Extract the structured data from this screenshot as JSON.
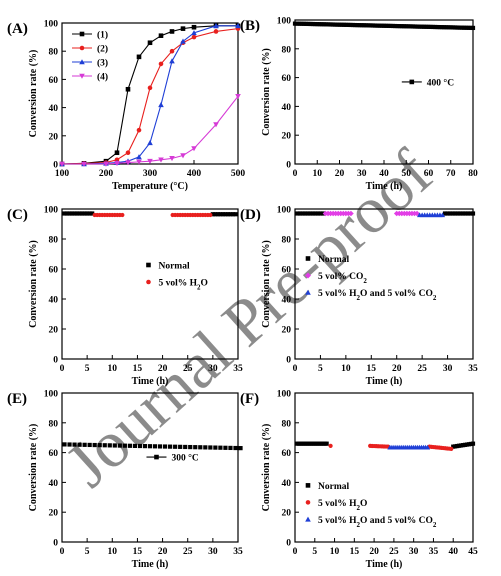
{
  "watermark": "Journal Pre-proof",
  "chart_data": [
    {
      "id": "A",
      "panel_label": "(A)",
      "type": "line",
      "xlabel": "Temperature (°C)",
      "ylabel": "Conversion rate (%)",
      "xlim": [
        100,
        500
      ],
      "ylim": [
        0,
        100
      ],
      "xticks": [
        100,
        200,
        300,
        400,
        500
      ],
      "yticks": [
        0,
        20,
        40,
        60,
        80,
        100
      ],
      "legend_position": "top-left",
      "series": [
        {
          "name": "(1)",
          "color": "#000000",
          "marker": "square",
          "x": [
            100,
            150,
            200,
            225,
            250,
            275,
            300,
            325,
            350,
            375,
            400,
            450,
            500
          ],
          "y": [
            0,
            0.5,
            2,
            8,
            53,
            76,
            86,
            91,
            94,
            96,
            97,
            98,
            98
          ]
        },
        {
          "name": "(2)",
          "color": "#e8201e",
          "marker": "circle",
          "x": [
            100,
            150,
            200,
            225,
            250,
            275,
            300,
            325,
            350,
            375,
            400,
            450,
            500
          ],
          "y": [
            0,
            0.3,
            1,
            3,
            8,
            24,
            54,
            71,
            80,
            86,
            90,
            94,
            96
          ]
        },
        {
          "name": "(3)",
          "color": "#1f3fd6",
          "marker": "triangle",
          "x": [
            100,
            150,
            200,
            225,
            250,
            275,
            300,
            325,
            350,
            375,
            400,
            450,
            500
          ],
          "y": [
            0,
            0,
            0.5,
            1,
            2,
            5,
            15,
            42,
            73,
            87,
            93,
            98,
            98
          ]
        },
        {
          "name": "(4)",
          "color": "#d63ad6",
          "marker": "triangle-down",
          "x": [
            100,
            150,
            200,
            225,
            250,
            275,
            300,
            325,
            350,
            375,
            400,
            450,
            500
          ],
          "y": [
            0,
            0,
            0,
            0.5,
            1,
            1.5,
            2,
            3,
            4,
            6,
            11,
            28,
            48
          ]
        }
      ]
    },
    {
      "id": "B",
      "panel_label": "(B)",
      "type": "scatter",
      "xlabel": "Time (h)",
      "ylabel": "Conversion rate (%)",
      "xlim": [
        0,
        80
      ],
      "ylim": [
        0,
        100
      ],
      "xticks": [
        0,
        10,
        20,
        30,
        40,
        50,
        60,
        70,
        80
      ],
      "yticks": [
        0,
        20,
        40,
        60,
        80,
        100
      ],
      "legend_position": "right-middle",
      "series": [
        {
          "name": "400 °C",
          "color": "#000000",
          "marker": "square",
          "legend_line": true,
          "segments": [
            {
              "from": 0,
              "to": 80,
              "step": 1,
              "y_start": 97.5,
              "y_end": 94.5
            }
          ]
        }
      ]
    },
    {
      "id": "C",
      "panel_label": "(C)",
      "type": "scatter",
      "xlabel": "Time (h)",
      "ylabel": "Conversion rate (%)",
      "xlim": [
        0,
        35
      ],
      "ylim": [
        0,
        100
      ],
      "xticks": [
        0,
        5,
        10,
        15,
        20,
        25,
        30,
        35
      ],
      "yticks": [
        0,
        20,
        40,
        60,
        80,
        100
      ],
      "legend_position": "center-right",
      "series": [
        {
          "name": "Normal",
          "color": "#000000",
          "marker": "square",
          "segments": [
            {
              "from": 0.5,
              "to": 6,
              "step": 0.5,
              "y_start": 97,
              "y_end": 97
            },
            {
              "from": 30,
              "to": 34.5,
              "step": 0.5,
              "y_start": 96.5,
              "y_end": 96.5
            }
          ]
        },
        {
          "name": "5 vol% H₂O",
          "color": "#e8201e",
          "marker": "circle",
          "segments": [
            {
              "from": 6.5,
              "to": 12,
              "step": 0.5,
              "y_start": 96,
              "y_end": 96
            },
            {
              "from": 22,
              "to": 29.5,
              "step": 0.5,
              "y_start": 96,
              "y_end": 96
            }
          ]
        }
      ]
    },
    {
      "id": "D",
      "panel_label": "(D)",
      "type": "scatter",
      "xlabel": "Time (h)",
      "ylabel": "Conversion rate (%)",
      "xlim": [
        0,
        35
      ],
      "ylim": [
        0,
        100
      ],
      "xticks": [
        0,
        5,
        10,
        15,
        20,
        25,
        30,
        35
      ],
      "yticks": [
        0,
        20,
        40,
        60,
        80,
        100
      ],
      "legend_position": "center-left",
      "series": [
        {
          "name": "Normal",
          "color": "#000000",
          "marker": "square",
          "segments": [
            {
              "from": 0.5,
              "to": 5.5,
              "step": 0.5,
              "y_start": 97,
              "y_end": 97
            },
            {
              "from": 29.5,
              "to": 35,
              "step": 0.5,
              "y_start": 97,
              "y_end": 97
            }
          ]
        },
        {
          "name": "5 vol% CO₂",
          "color": "#e23ee6",
          "marker": "diamond",
          "segments": [
            {
              "from": 6,
              "to": 11,
              "step": 0.5,
              "y_start": 97,
              "y_end": 97
            },
            {
              "from": 20,
              "to": 24,
              "step": 0.5,
              "y_start": 97,
              "y_end": 97
            }
          ]
        },
        {
          "name": "5 vol% H₂O and 5 vol% CO₂",
          "color": "#1f3fd6",
          "marker": "triangle",
          "segments": [
            {
              "from": 24.5,
              "to": 29,
              "step": 0.5,
              "y_start": 96,
              "y_end": 96
            }
          ]
        }
      ]
    },
    {
      "id": "E",
      "panel_label": "(E)",
      "type": "scatter",
      "xlabel": "Time (h)",
      "ylabel": "Conversion rate (%)",
      "xlim": [
        0,
        35
      ],
      "ylim": [
        0,
        100
      ],
      "xticks": [
        0,
        5,
        10,
        15,
        20,
        25,
        30,
        35
      ],
      "yticks": [
        0,
        20,
        40,
        60,
        80,
        100
      ],
      "legend_position": "center-right",
      "series": [
        {
          "name": "300 °C",
          "color": "#000000",
          "marker": "square",
          "legend_line": true,
          "segments": [
            {
              "from": 0.5,
              "to": 35,
              "step": 1,
              "y_start": 65.5,
              "y_end": 63
            }
          ]
        }
      ]
    },
    {
      "id": "F",
      "panel_label": "(F)",
      "type": "scatter",
      "xlabel": "Time (h)",
      "ylabel": "Conversion rate (%)",
      "xlim": [
        0,
        45
      ],
      "ylim": [
        0,
        100
      ],
      "xticks": [
        0,
        5,
        10,
        15,
        20,
        25,
        30,
        35,
        40,
        45
      ],
      "yticks": [
        0,
        20,
        40,
        60,
        80,
        100
      ],
      "legend_position": "bottom-left",
      "series": [
        {
          "name": "Normal",
          "color": "#000000",
          "marker": "square",
          "segments": [
            {
              "from": 0.5,
              "to": 8,
              "step": 0.5,
              "y_start": 66,
              "y_end": 66
            },
            {
              "from": 40,
              "to": 45,
              "step": 0.5,
              "y_start": 64,
              "y_end": 66
            }
          ]
        },
        {
          "name": "5 vol% H₂O",
          "color": "#e8201e",
          "marker": "circle",
          "segments": [
            {
              "from": 9,
              "to": 9,
              "step": 1,
              "y_start": 64.5,
              "y_end": 64.5
            },
            {
              "from": 19,
              "to": 23.5,
              "step": 0.5,
              "y_start": 64.5,
              "y_end": 64
            },
            {
              "from": 34,
              "to": 39.5,
              "step": 0.5,
              "y_start": 64,
              "y_end": 62.5
            }
          ]
        },
        {
          "name": "5 vol% H₂O and 5 vol% CO₂",
          "color": "#1f3fd6",
          "marker": "triangle",
          "segments": [
            {
              "from": 24,
              "to": 33.5,
              "step": 0.5,
              "y_start": 63.5,
              "y_end": 63.5
            }
          ]
        }
      ]
    }
  ]
}
